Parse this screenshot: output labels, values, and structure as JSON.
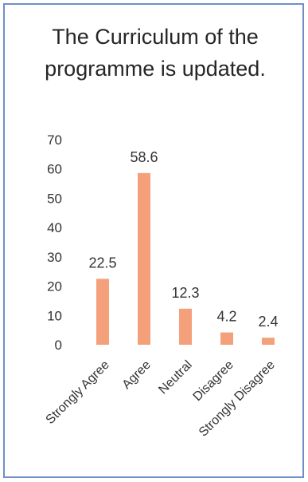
{
  "chart_data": {
    "type": "bar",
    "title": "The Curriculum of the programme is updated.",
    "categories": [
      "Strongly Agree",
      "Agree",
      "Neutral",
      "Disagree",
      "Strongly Disagree"
    ],
    "values": [
      22.5,
      58.6,
      12.3,
      4.2,
      2.4
    ],
    "data_labels": [
      "22.5",
      "58.6",
      "12.3",
      "4.2",
      "2.4"
    ],
    "ylim": [
      0,
      70
    ],
    "yticks": [
      0,
      10,
      20,
      30,
      40,
      50,
      60,
      70
    ],
    "xlabel": "",
    "ylabel": "",
    "grid": false,
    "legend": false,
    "bar_color": "#f4a07a",
    "border_color": "#6f8fc6"
  }
}
